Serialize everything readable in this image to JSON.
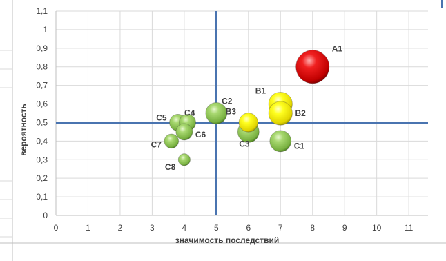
{
  "chart_data": {
    "type": "scatter",
    "subtype": "bubble",
    "xlabel": "значимость последствий",
    "ylabel": "вероятность",
    "xlim": [
      0,
      11.6
    ],
    "ylim": [
      0,
      1.1
    ],
    "x_ticks": [
      "0",
      "1",
      "2",
      "3",
      "4",
      "5",
      "6",
      "7",
      "8",
      "9",
      "10",
      "11"
    ],
    "y_ticks": [
      "0",
      "0,1",
      "0,2",
      "0,3",
      "0,4",
      "0,5",
      "0,6",
      "0,7",
      "0,8",
      "0,9",
      "1",
      "1,1"
    ],
    "grid": true,
    "threshold_lines": {
      "x": 5,
      "y": 0.5,
      "color": "#4a74b0"
    },
    "colors": {
      "red": "#e01010",
      "yellow": "#f2e600",
      "green": "#8fc34a",
      "grid": "#d9d9d9",
      "axis": "#bfbfbf"
    },
    "points": [
      {
        "label": "C7",
        "x": 3.6,
        "y": 0.4,
        "size": 0.6,
        "color": "green"
      },
      {
        "label": "C8",
        "x": 4.0,
        "y": 0.3,
        "size": 0.5,
        "color": "green"
      },
      {
        "label": "C5",
        "x": 3.8,
        "y": 0.5,
        "size": 0.7,
        "color": "green"
      },
      {
        "label": "C4",
        "x": 4.1,
        "y": 0.5,
        "size": 0.7,
        "color": "green"
      },
      {
        "label": "C6",
        "x": 4.0,
        "y": 0.45,
        "size": 0.7,
        "color": "green"
      },
      {
        "label": "C2",
        "x": 5.0,
        "y": 0.55,
        "size": 0.9,
        "color": "green"
      },
      {
        "label": "B3",
        "x": 6.0,
        "y": 0.5,
        "size": 0.8,
        "color": "yellow"
      },
      {
        "label": "C3",
        "x": 6.0,
        "y": 0.45,
        "size": 0.9,
        "color": "green"
      },
      {
        "label": "B1",
        "x": 7.0,
        "y": 0.6,
        "size": 1.0,
        "color": "yellow"
      },
      {
        "label": "B2",
        "x": 7.0,
        "y": 0.55,
        "size": 1.0,
        "color": "yellow"
      },
      {
        "label": "C1",
        "x": 7.0,
        "y": 0.4,
        "size": 0.9,
        "color": "green"
      },
      {
        "label": "A1",
        "x": 8.0,
        "y": 0.8,
        "size": 1.4,
        "color": "red"
      }
    ]
  }
}
